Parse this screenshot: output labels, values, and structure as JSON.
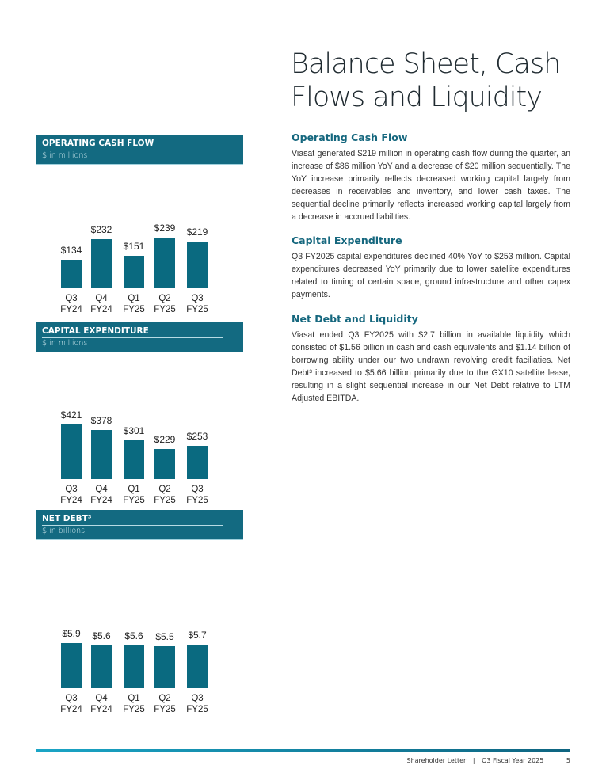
{
  "page": {
    "title": "Balance Sheet, Cash Flows and Liquidity",
    "sections": [
      {
        "heading": "Operating Cash Flow",
        "body": "Viasat generated $219 million in operating cash flow during the quarter, an increase of $86 million YoY and a decrease of $20 million sequentially. The YoY increase primarily reflects decreased working capital largely from decreases in receivables and inventory, and lower cash taxes. The sequential decline primarily reflects increased working capital largely from a decrease in accrued liabilities."
      },
      {
        "heading": "Capital Expenditure",
        "body": "Q3 FY2025 capital expenditures declined 40% YoY to $253 million. Capital expenditures decreased YoY primarily due to lower satellite expenditures related to timing of certain space, ground infrastructure and other capex payments."
      },
      {
        "heading": "Net Debt and Liquidity",
        "body": "Viasat ended Q3 FY2025 with $2.7 billion in available liquidity which consisted of $1.56 billion in cash and cash equivalents and $1.14 billion of borrowing ability under our two undrawn revolving credit faciliaties. Net Debt³ increased to $5.66 billion primarily due to the GX10 satellite lease, resulting in a slight sequential increase in our Net Debt relative to LTM Adjusted EBITDA."
      }
    ],
    "footer": {
      "left": "Shareholder Letter",
      "separator": "|",
      "right": "Q3 Fiscal Year 2025",
      "page_number": "5"
    }
  },
  "colors": {
    "bar": "#0a6a80",
    "header": "#136a81",
    "heading": "#15677e"
  },
  "chart_data": [
    {
      "type": "bar",
      "title": "OPERATING CASH FLOW",
      "subtitle": "$ in millions",
      "categories": [
        "Q3\nFY24",
        "Q4\nFY24",
        "Q1\nFY25",
        "Q2\nFY25",
        "Q3\nFY25"
      ],
      "values": [
        134,
        232,
        151,
        239,
        219
      ],
      "labels": [
        "$134",
        "$232",
        "$151",
        "$239",
        "$219"
      ],
      "ylim": [
        0,
        260
      ]
    },
    {
      "type": "bar",
      "title": "CAPITAL EXPENDITURE",
      "subtitle": "$ in millions",
      "categories": [
        "Q3\nFY24",
        "Q4\nFY24",
        "Q1\nFY25",
        "Q2\nFY25",
        "Q3\nFY25"
      ],
      "values": [
        421,
        378,
        301,
        229,
        253
      ],
      "labels": [
        "$421",
        "$378",
        "$301",
        "$229",
        "$253"
      ],
      "ylim": [
        0,
        450
      ]
    },
    {
      "type": "bar",
      "title": "NET DEBT³",
      "subtitle": "$ in billions",
      "categories": [
        "Q3\nFY24",
        "Q4\nFY24",
        "Q1\nFY25",
        "Q2\nFY25",
        "Q3\nFY25"
      ],
      "values": [
        5.9,
        5.6,
        5.6,
        5.5,
        5.7
      ],
      "labels": [
        "$5.9",
        "$5.6",
        "$5.6",
        "$5.5",
        "$5.7"
      ],
      "ylim": [
        0,
        6.2
      ]
    }
  ]
}
